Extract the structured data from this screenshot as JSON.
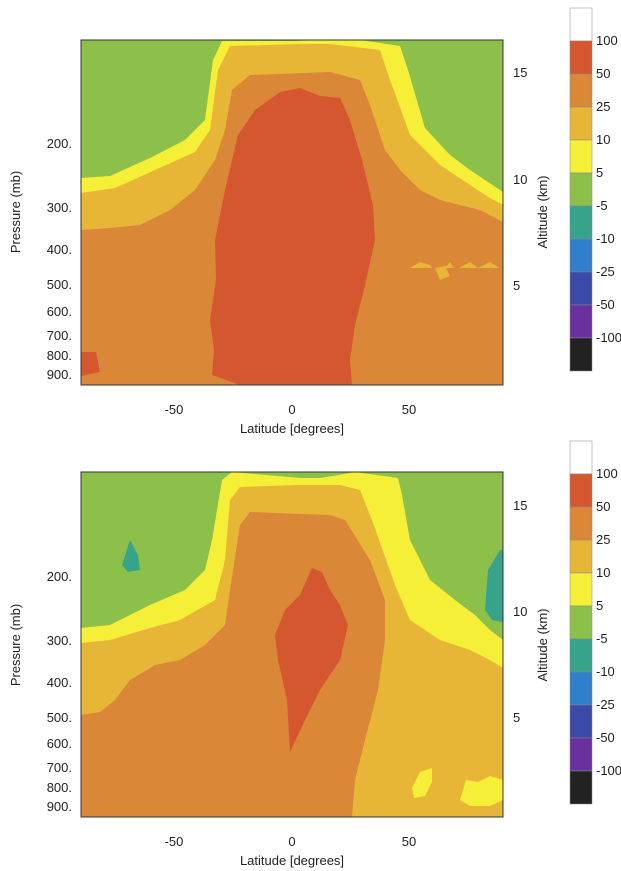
{
  "chart_data": [
    {
      "type": "contour",
      "panel": "top",
      "xlabel": "Latitude [degrees]",
      "ylabel": "Pressure (mb)",
      "y2label": "Altitude (km)",
      "xlim": [
        -90,
        90
      ],
      "x_ticks": [
        "-50",
        "0",
        "50"
      ],
      "pressure_ticks": [
        "200.",
        "300.",
        "400.",
        "500.",
        "600.",
        "700.",
        "800.",
        "900."
      ],
      "altitude_ticks": [
        "5",
        "10",
        "15"
      ],
      "levels": [
        {
          "label": "-100",
          "color": "#222222"
        },
        {
          "label": "-50",
          "color": "#6a30a0"
        },
        {
          "label": "-25",
          "color": "#3a4aa6"
        },
        {
          "label": "-10",
          "color": "#2f7fcb"
        },
        {
          "label": "-5",
          "color": "#36a38a"
        },
        {
          "label": "5",
          "color": "#8dbf4b"
        },
        {
          "label": "10",
          "color": "#f6ef38"
        },
        {
          "label": "25",
          "color": "#e8b636"
        },
        {
          "label": "50",
          "color": "#da8738"
        },
        {
          "label": "100",
          "color": "#d4572f"
        }
      ],
      "regions": [
        {
          "band": "5 to 10",
          "approx_extent": "thin band above the 10-25 region, broad near 200 mb at high latitudes"
        },
        {
          "band": "10 to 25",
          "approx_extent": "tropopause layer around the central column"
        },
        {
          "band": "25 to 50",
          "approx_extent": "most of the troposphere below ~300 mb"
        },
        {
          "band": "50 to 100",
          "approx_extent": "central column from about -35 to 28 latitude, surface to ~12 km"
        }
      ]
    },
    {
      "type": "contour",
      "panel": "bottom",
      "xlabel": "Latitude [degrees]",
      "ylabel": "Pressure (mb)",
      "y2label": "Altitude (km)",
      "xlim": [
        -90,
        90
      ],
      "x_ticks": [
        "-50",
        "0",
        "50"
      ],
      "pressure_ticks": [
        "200.",
        "300.",
        "400.",
        "500.",
        "600.",
        "700.",
        "800.",
        "900."
      ],
      "altitude_ticks": [
        "5",
        "10",
        "15"
      ],
      "levels": [
        {
          "label": "-100",
          "color": "#222222"
        },
        {
          "label": "-50",
          "color": "#6a30a0"
        },
        {
          "label": "-25",
          "color": "#3a4aa6"
        },
        {
          "label": "-10",
          "color": "#2f7fcb"
        },
        {
          "label": "-5",
          "color": "#36a38a"
        },
        {
          "label": "5",
          "color": "#8dbf4b"
        },
        {
          "label": "10",
          "color": "#f6ef38"
        },
        {
          "label": "25",
          "color": "#e8b636"
        },
        {
          "label": "50",
          "color": "#da8738"
        },
        {
          "label": "100",
          "color": "#d4572f"
        }
      ],
      "regions": [
        {
          "band": "-10 to -5",
          "approx_extent": "small patches near -70 and 85 latitude around 200 mb"
        },
        {
          "band": "5 to 10",
          "approx_extent": "thin band above tropopause layer"
        },
        {
          "band": "10 to 25",
          "approx_extent": "upper troposphere and northern mid-latitudes below 500 mb"
        },
        {
          "band": "25 to 50",
          "approx_extent": "southern and tropical troposphere"
        },
        {
          "band": "50 to 100",
          "approx_extent": "narrow core near 0-15 latitude, 700 to 200 mb"
        }
      ]
    }
  ],
  "colorbar": {
    "labels": [
      "100",
      "50",
      "25",
      "10",
      "5",
      "-5",
      "-10",
      "-25",
      "-50",
      "-100"
    ],
    "colors": [
      "#ffffff",
      "#d4572f",
      "#da8738",
      "#e8b636",
      "#f6ef38",
      "#8dbf4b",
      "#36a38a",
      "#2f7fcb",
      "#3a4aa6",
      "#6a30a0",
      "#222222"
    ]
  },
  "colors": {
    "green": "#8dbf4b",
    "yellow": "#f6ef38",
    "gold": "#e8b636",
    "orange": "#da8738",
    "red": "#d4572f",
    "teal": "#36a38a"
  }
}
